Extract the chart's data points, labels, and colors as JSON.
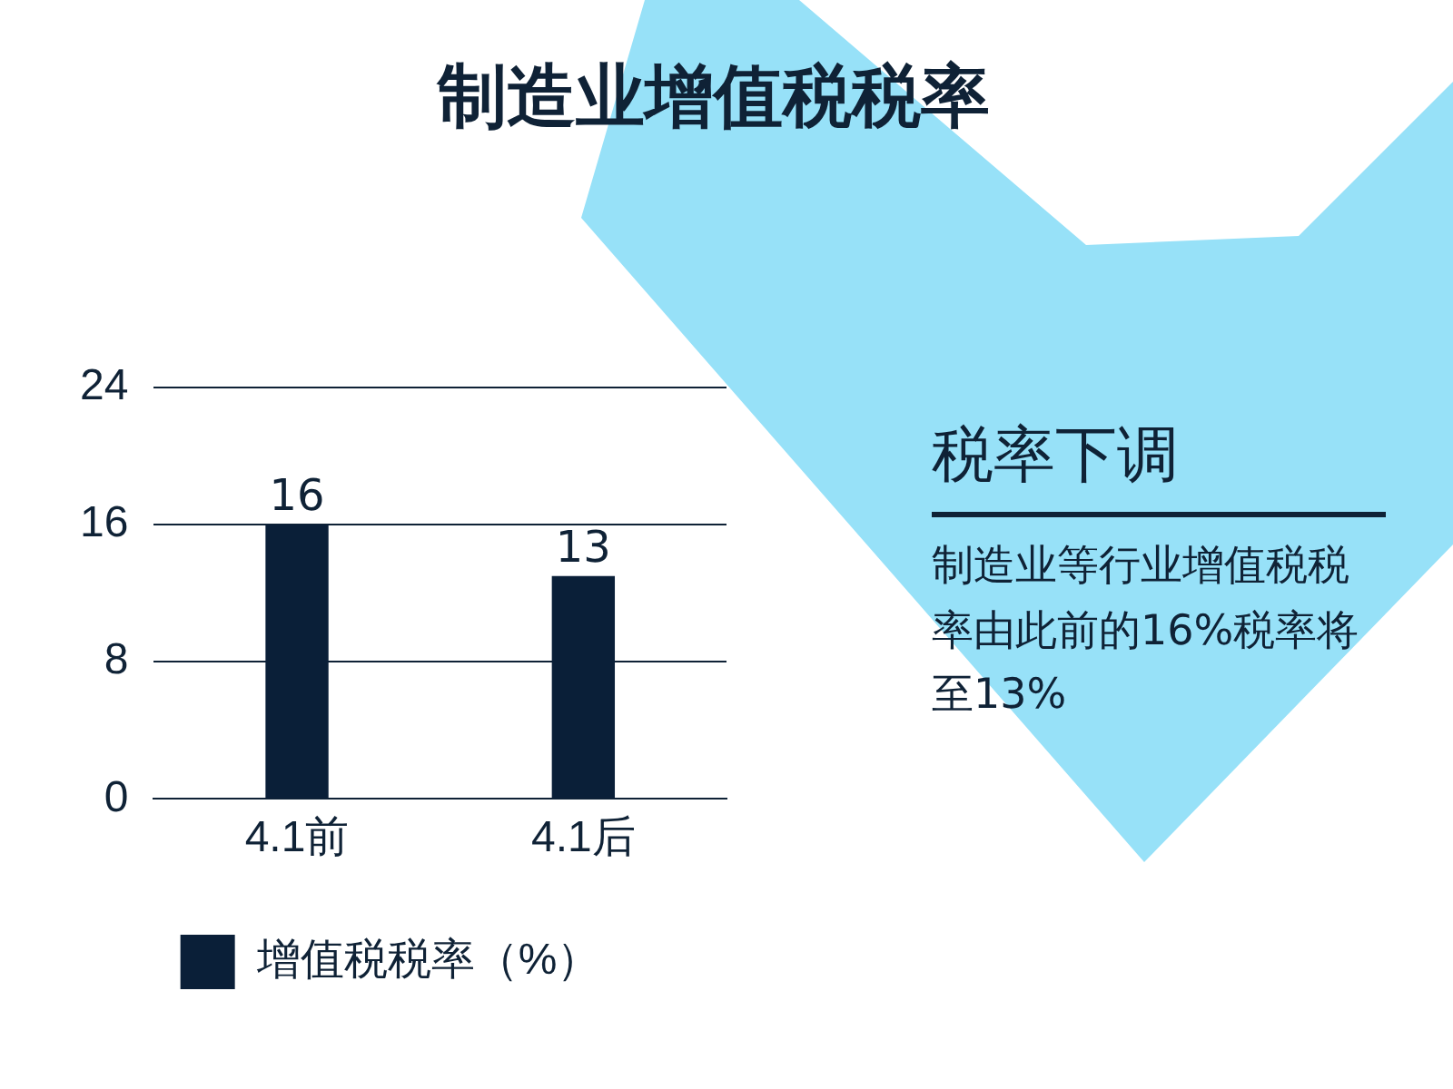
{
  "chart_data": {
    "type": "bar",
    "title": "制造业增值税税率",
    "categories": [
      "4.1前",
      "4.1后"
    ],
    "series": [
      {
        "name": "增值税税率（%）",
        "color": "#0a1f38",
        "values": [
          16,
          13
        ]
      }
    ],
    "ylim": [
      0,
      24
    ],
    "yticks": [
      0,
      8,
      16,
      24
    ],
    "grid": "y",
    "legend": "bottom",
    "data_labels": true,
    "annotations": [
      "税率下调",
      "制造业等行业增值税税率由此前的16%税率将至13%"
    ]
  }
}
